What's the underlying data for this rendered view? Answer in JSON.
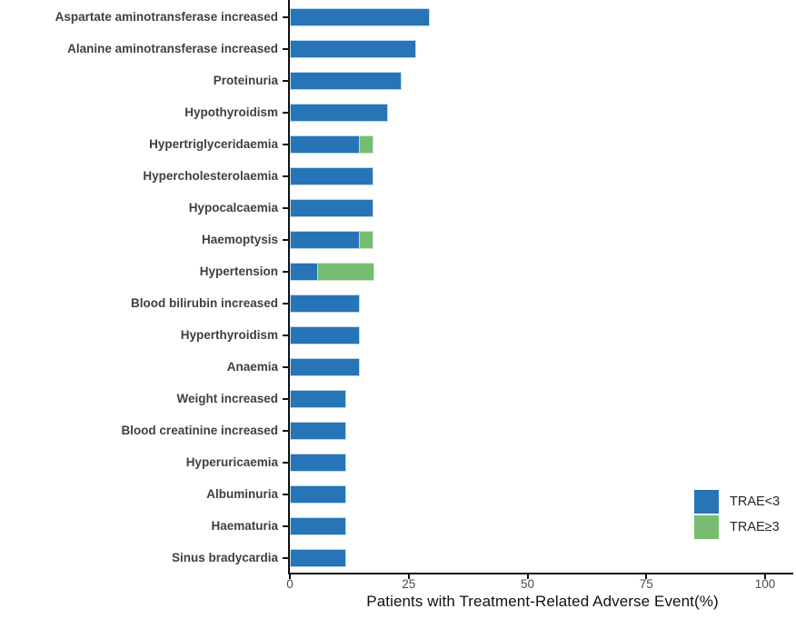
{
  "chart_data": {
    "type": "bar",
    "orientation": "horizontal",
    "stacked": true,
    "title": "",
    "xlabel": "Patients with Treatment-Related Adverse Event(%)",
    "ylabel": "",
    "xlim": [
      0,
      106
    ],
    "xticks": [
      0,
      25,
      50,
      75,
      100
    ],
    "xtick_labels": [
      "0",
      "25",
      "50",
      "75",
      "100"
    ],
    "grid": false,
    "categories": [
      "Aspartate aminotransferase increased",
      "Alanine aminotransferase increased",
      "Proteinuria",
      "Hypothyroidism",
      "Hypertriglyceridaemia",
      "Hypercholesterolaemia",
      "Hypocalcaemia",
      "Haemoptysis",
      "Hypertension",
      "Blood bilirubin increased",
      "Hyperthyroidism",
      "Anaemia",
      "Weight increased",
      "Blood creatinine increased",
      "Hyperuricaemia",
      "Albuminuria",
      "Haematuria",
      "Sinus bradycardia"
    ],
    "series": [
      {
        "name": "TRAE<3",
        "color": "#2774B6",
        "values": [
          29.4,
          26.5,
          23.5,
          20.6,
          14.7,
          17.6,
          17.6,
          14.7,
          5.9,
          14.7,
          14.7,
          14.7,
          11.8,
          11.8,
          11.8,
          11.8,
          11.8,
          11.8
        ]
      },
      {
        "name": "TRAE≥3",
        "color": "#76BD72",
        "values": [
          0,
          0,
          0,
          0,
          2.9,
          0,
          0,
          2.9,
          11.8,
          0,
          0,
          0,
          0,
          0,
          0,
          0,
          0,
          0
        ]
      }
    ],
    "legend": {
      "position": "right-bottom",
      "entries": [
        {
          "label": "TRAE<3",
          "color": "#2774B6"
        },
        {
          "label": "TRAE≥3",
          "color": "#76BD72"
        }
      ]
    }
  }
}
